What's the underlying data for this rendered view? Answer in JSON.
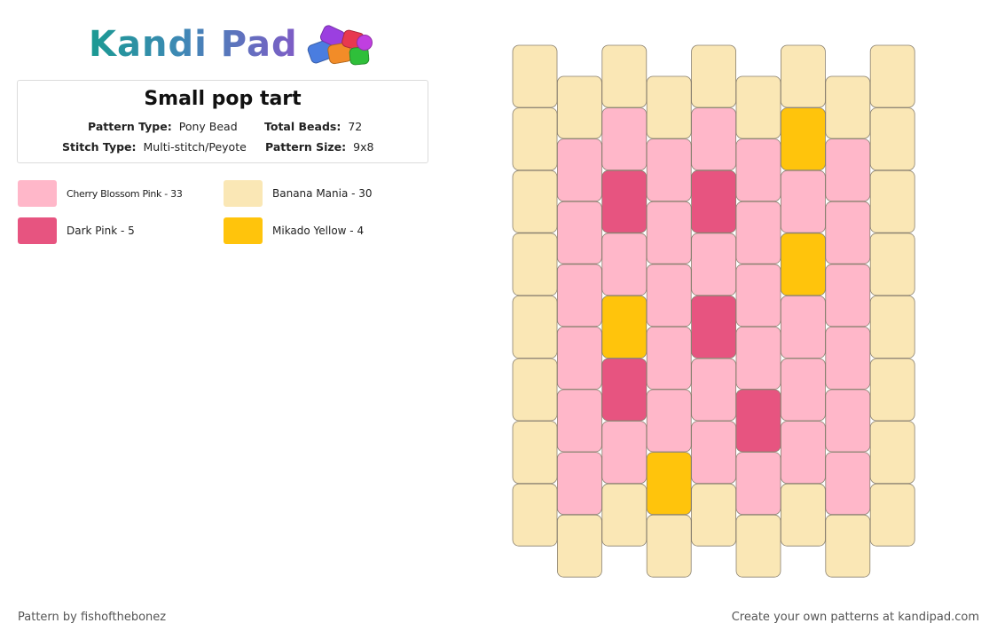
{
  "header": {
    "logo_text": "Kandi Pad",
    "logo_icon": "beads-icon"
  },
  "pattern": {
    "title": "Small pop tart",
    "pattern_type_label": "Pattern Type:",
    "pattern_type": "Pony Bead",
    "total_beads_label": "Total Beads:",
    "total_beads": "72",
    "stitch_type_label": "Stitch Type:",
    "stitch_type": "Multi-stitch/Peyote",
    "pattern_size_label": "Pattern Size:",
    "pattern_size": "9x8"
  },
  "legend": [
    {
      "label": "Cherry Blossom Pink - 33",
      "color": "#ffb7c9",
      "key": "P"
    },
    {
      "label": "Banana Mania - 30",
      "color": "#fae7b5",
      "key": "B"
    },
    {
      "label": "Dark Pink - 5",
      "color": "#e75480",
      "key": "D"
    },
    {
      "label": "Mikado Yellow - 4",
      "color": "#ffc40c",
      "key": "Y"
    }
  ],
  "colors": {
    "P": "#ffb7c9",
    "B": "#fae7b5",
    "D": "#e75480",
    "Y": "#ffc40c",
    "bead_border": "#8a8170"
  },
  "grid": {
    "columns": [
      "BBBBBBBB",
      "BPPPPPPB",
      "BPDPYDPB",
      "BPPPPPYB",
      "BPDPDPPB",
      "BPPPPDPB",
      "BYPYPPPB",
      "BPPPPPPB",
      "BBBBBBBB"
    ]
  },
  "footer": {
    "author": "Pattern by fishofthebonez",
    "cta": "Create your own patterns at kandipad.com"
  }
}
